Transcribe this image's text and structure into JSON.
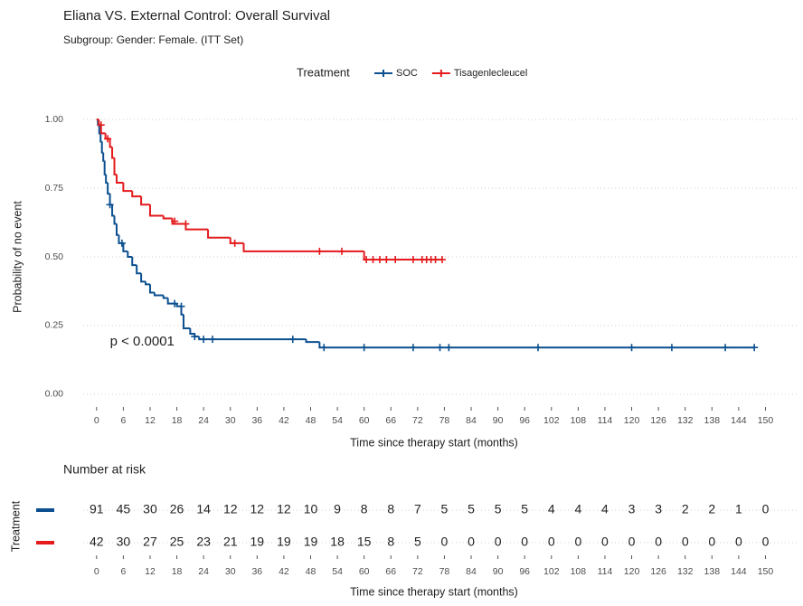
{
  "chart_data": [
    {
      "type": "survival",
      "title": "Eliana VS. External Control: Overall Survival",
      "subtitle": "Subgroup: Gender: Female. (ITT Set)",
      "legend_title": "Treatment",
      "legend_position": "top",
      "x_label": "Time since therapy start (months)",
      "y_label": "Probability of no event",
      "annotation": "p < 0.0001",
      "annotation_x": 3,
      "annotation_y": 0.19,
      "grid": true,
      "xlim": [
        -3,
        157
      ],
      "xticks": [
        0,
        6,
        12,
        18,
        24,
        30,
        36,
        42,
        48,
        54,
        60,
        66,
        72,
        78,
        84,
        90,
        96,
        102,
        108,
        114,
        120,
        126,
        132,
        138,
        144,
        150
      ],
      "ylim": [
        -0.04,
        1.04
      ],
      "yticks": [
        {
          "value": 0,
          "label": "0.00"
        },
        {
          "value": 0.25,
          "label": "0.25"
        },
        {
          "value": 0.5,
          "label": "0.50"
        },
        {
          "value": 0.75,
          "label": "0.75"
        },
        {
          "value": 1,
          "label": "1.00"
        }
      ],
      "series": [
        {
          "name": "SOC",
          "color": "#0b4f8f",
          "x": [
            0,
            0.3,
            0.6,
            0.9,
            1.2,
            1.5,
            1.8,
            2.1,
            2.5,
            3,
            3.5,
            4,
            4.5,
            5,
            6,
            7,
            8,
            9,
            10,
            11,
            12,
            13,
            15,
            16,
            18,
            19,
            19.5,
            21,
            22,
            23,
            47,
            50
          ],
          "values": [
            1,
            0.98,
            0.95,
            0.92,
            0.88,
            0.85,
            0.8,
            0.77,
            0.73,
            0.69,
            0.65,
            0.62,
            0.58,
            0.55,
            0.52,
            0.5,
            0.47,
            0.44,
            0.41,
            0.4,
            0.37,
            0.36,
            0.35,
            0.33,
            0.32,
            0.29,
            0.24,
            0.22,
            0.21,
            0.2,
            0.19,
            0.17
          ],
          "censor_x": [
            3,
            5.7,
            17.5,
            19,
            22,
            24,
            26,
            44,
            51,
            60,
            71,
            77,
            79,
            99,
            120,
            129,
            141,
            147.5
          ],
          "censor_values": [
            0.69,
            0.55,
            0.33,
            0.32,
            0.21,
            0.2,
            0.2,
            0.2,
            0.17,
            0.17,
            0.17,
            0.17,
            0.17,
            0.17,
            0.17,
            0.17,
            0.17,
            0.17
          ]
        },
        {
          "name": "Tisagenlecleucel",
          "color": "#e41a1c",
          "x": [
            0,
            0.5,
            1,
            2,
            3,
            3.5,
            4,
            4.5,
            6,
            8,
            10,
            12,
            15,
            17,
            20,
            25,
            30,
            33,
            60
          ],
          "values": [
            1,
            0.98,
            0.95,
            0.93,
            0.9,
            0.86,
            0.8,
            0.77,
            0.74,
            0.72,
            0.69,
            0.65,
            0.64,
            0.62,
            0.6,
            0.57,
            0.55,
            0.52,
            0.49
          ],
          "censor_x": [
            1,
            2.5,
            17.5,
            20,
            31,
            50,
            55,
            60.5,
            62,
            63.5,
            65,
            67,
            71,
            73,
            74,
            75,
            76,
            77.5
          ],
          "censor_values": [
            0.98,
            0.93,
            0.63,
            0.62,
            0.55,
            0.52,
            0.52,
            0.49,
            0.49,
            0.49,
            0.49,
            0.49,
            0.49,
            0.49,
            0.49,
            0.49,
            0.49,
            0.49
          ]
        }
      ]
    },
    {
      "type": "table",
      "title": "Number at risk",
      "x_label": "Time since therapy start (months)",
      "y_label": "Treatment",
      "xlim": [
        -3,
        157
      ],
      "xticks": [
        0,
        6,
        12,
        18,
        24,
        30,
        36,
        42,
        48,
        54,
        60,
        66,
        72,
        78,
        84,
        90,
        96,
        102,
        108,
        114,
        120,
        126,
        132,
        138,
        144,
        150
      ],
      "series": [
        {
          "color": "#0b4f8f",
          "values": [
            91,
            45,
            30,
            26,
            14,
            12,
            12,
            12,
            10,
            9,
            8,
            8,
            7,
            5,
            5,
            5,
            5,
            4,
            4,
            4,
            3,
            3,
            2,
            2,
            1,
            0
          ]
        },
        {
          "color": "#e41a1c",
          "values": [
            42,
            30,
            27,
            25,
            23,
            21,
            19,
            19,
            19,
            18,
            15,
            8,
            5,
            0,
            0,
            0,
            0,
            0,
            0,
            0,
            0,
            0,
            0,
            0,
            0,
            0
          ]
        }
      ]
    }
  ]
}
